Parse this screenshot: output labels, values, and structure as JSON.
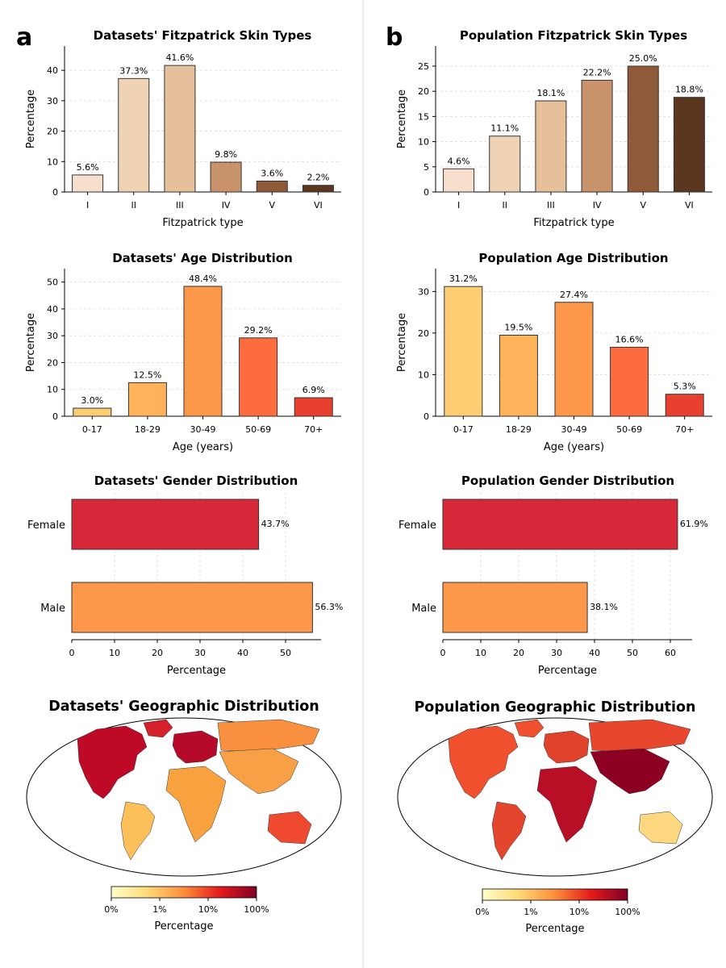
{
  "panels": [
    {
      "letter": "a"
    },
    {
      "letter": "b"
    }
  ],
  "chart_data": [
    {
      "id": "a-fitz",
      "panel": "a",
      "type": "bar",
      "title": "Datasets' Fitzpatrick Skin Types",
      "xlabel": "Fitzpatrick type",
      "ylabel": "Percentage",
      "categories": [
        "I",
        "II",
        "III",
        "IV",
        "V",
        "VI"
      ],
      "values": [
        5.6,
        37.3,
        41.6,
        9.8,
        3.6,
        2.2
      ],
      "value_labels": [
        "5.6%",
        "37.3%",
        "41.6%",
        "9.8%",
        "3.6%",
        "2.2%"
      ],
      "colors": [
        "#f6dfcd",
        "#f0d3b4",
        "#e6bf9b",
        "#c8926a",
        "#8e5a39",
        "#5c3720"
      ],
      "ylim": [
        0,
        48
      ],
      "yticks": [
        0,
        10,
        20,
        30,
        40
      ],
      "grid": true
    },
    {
      "id": "b-fitz",
      "panel": "b",
      "type": "bar",
      "title": "Population Fitzpatrick Skin Types",
      "xlabel": "Fitzpatrick type",
      "ylabel": "Percentage",
      "categories": [
        "I",
        "II",
        "III",
        "IV",
        "V",
        "VI"
      ],
      "values": [
        4.6,
        11.1,
        18.1,
        22.2,
        25.0,
        18.8
      ],
      "value_labels": [
        "4.6%",
        "11.1%",
        "18.1%",
        "22.2%",
        "25.0%",
        "18.8%"
      ],
      "colors": [
        "#f6dfcd",
        "#f0d3b4",
        "#e6bf9b",
        "#c8926a",
        "#8e5a39",
        "#5c3720"
      ],
      "ylim": [
        0,
        29
      ],
      "yticks": [
        0,
        5,
        10,
        15,
        20,
        25
      ],
      "grid": true
    },
    {
      "id": "a-age",
      "panel": "a",
      "type": "bar",
      "title": "Datasets' Age Distribution",
      "xlabel": "Age (years)",
      "ylabel": "Percentage",
      "categories": [
        "0-17",
        "18-29",
        "30-49",
        "50-69",
        "70+"
      ],
      "values": [
        3.0,
        12.5,
        48.4,
        29.2,
        6.9
      ],
      "value_labels": [
        "3.0%",
        "12.5%",
        "48.4%",
        "29.2%",
        "6.9%"
      ],
      "colors": [
        "#fdcd74",
        "#feb25a",
        "#fd984a",
        "#fc6c3e",
        "#e8402f"
      ],
      "ylim": [
        0,
        55
      ],
      "yticks": [
        0,
        10,
        20,
        30,
        40,
        50
      ],
      "grid": true
    },
    {
      "id": "b-age",
      "panel": "b",
      "type": "bar",
      "title": "Population Age Distribution",
      "xlabel": "Age (years)",
      "ylabel": "Percentage",
      "categories": [
        "0-17",
        "18-29",
        "30-49",
        "50-69",
        "70+"
      ],
      "values": [
        31.2,
        19.5,
        27.4,
        16.6,
        5.3
      ],
      "value_labels": [
        "31.2%",
        "19.5%",
        "27.4%",
        "16.6%",
        "5.3%"
      ],
      "colors": [
        "#fdcd74",
        "#feb25a",
        "#fd984a",
        "#fc6c3e",
        "#e8402f"
      ],
      "ylim": [
        0,
        35.5
      ],
      "yticks": [
        0,
        10,
        20,
        30
      ],
      "grid": true
    },
    {
      "id": "a-gender",
      "panel": "a",
      "type": "barh",
      "title": "Datasets' Gender Distribution",
      "xlabel": "Percentage",
      "ylabel": "",
      "categories": [
        "Female",
        "Male"
      ],
      "values": [
        43.7,
        56.3
      ],
      "value_labels": [
        "43.7%",
        "56.3%"
      ],
      "colors": [
        "#d7283a",
        "#fd984a"
      ],
      "xlim": [
        0,
        60
      ],
      "xticks": [
        0,
        10,
        20,
        30,
        40,
        50
      ],
      "grid": true
    },
    {
      "id": "b-gender",
      "panel": "b",
      "type": "barh",
      "title": "Population Gender Distribution",
      "xlabel": "Percentage",
      "ylabel": "",
      "categories": [
        "Female",
        "Male"
      ],
      "values": [
        61.9,
        38.1
      ],
      "value_labels": [
        "61.9%",
        "38.1%"
      ],
      "colors": [
        "#d7283a",
        "#fd984a"
      ],
      "xlim": [
        0,
        65
      ],
      "xticks": [
        0,
        10,
        20,
        30,
        40,
        50,
        60
      ],
      "grid": true
    },
    {
      "id": "a-geo",
      "panel": "a",
      "type": "choropleth",
      "title": "Datasets' Geographic Distribution",
      "colorbar": {
        "label": "Percentage",
        "scale": "log",
        "ticks": [
          "0%",
          "1%",
          "10%",
          "100%"
        ]
      },
      "regions": [
        {
          "name": "North America",
          "color": "#be0a26"
        },
        {
          "name": "Greenland",
          "color": "#d3202a"
        },
        {
          "name": "South America",
          "color": "#fcbf5a"
        },
        {
          "name": "Europe",
          "color": "#b60a2a"
        },
        {
          "name": "Russia",
          "color": "#f8903f"
        },
        {
          "name": "Africa",
          "color": "#f7a13f"
        },
        {
          "name": "Asia",
          "color": "#f8a045"
        },
        {
          "name": "Australia",
          "color": "#ef4a30"
        }
      ]
    },
    {
      "id": "b-geo",
      "panel": "b",
      "type": "choropleth",
      "title": "Population Geographic Distribution",
      "colorbar": {
        "label": "Percentage",
        "scale": "log",
        "ticks": [
          "0%",
          "1%",
          "10%",
          "100%"
        ]
      },
      "regions": [
        {
          "name": "North America",
          "color": "#f0502e"
        },
        {
          "name": "Greenland",
          "color": "#f0502e"
        },
        {
          "name": "South America",
          "color": "#e4452d"
        },
        {
          "name": "Europe",
          "color": "#e1422c"
        },
        {
          "name": "Russia",
          "color": "#e8472e"
        },
        {
          "name": "Africa",
          "color": "#b80f26"
        },
        {
          "name": "Asia",
          "color": "#8d0024"
        },
        {
          "name": "Australia",
          "color": "#fdd881"
        }
      ]
    }
  ]
}
